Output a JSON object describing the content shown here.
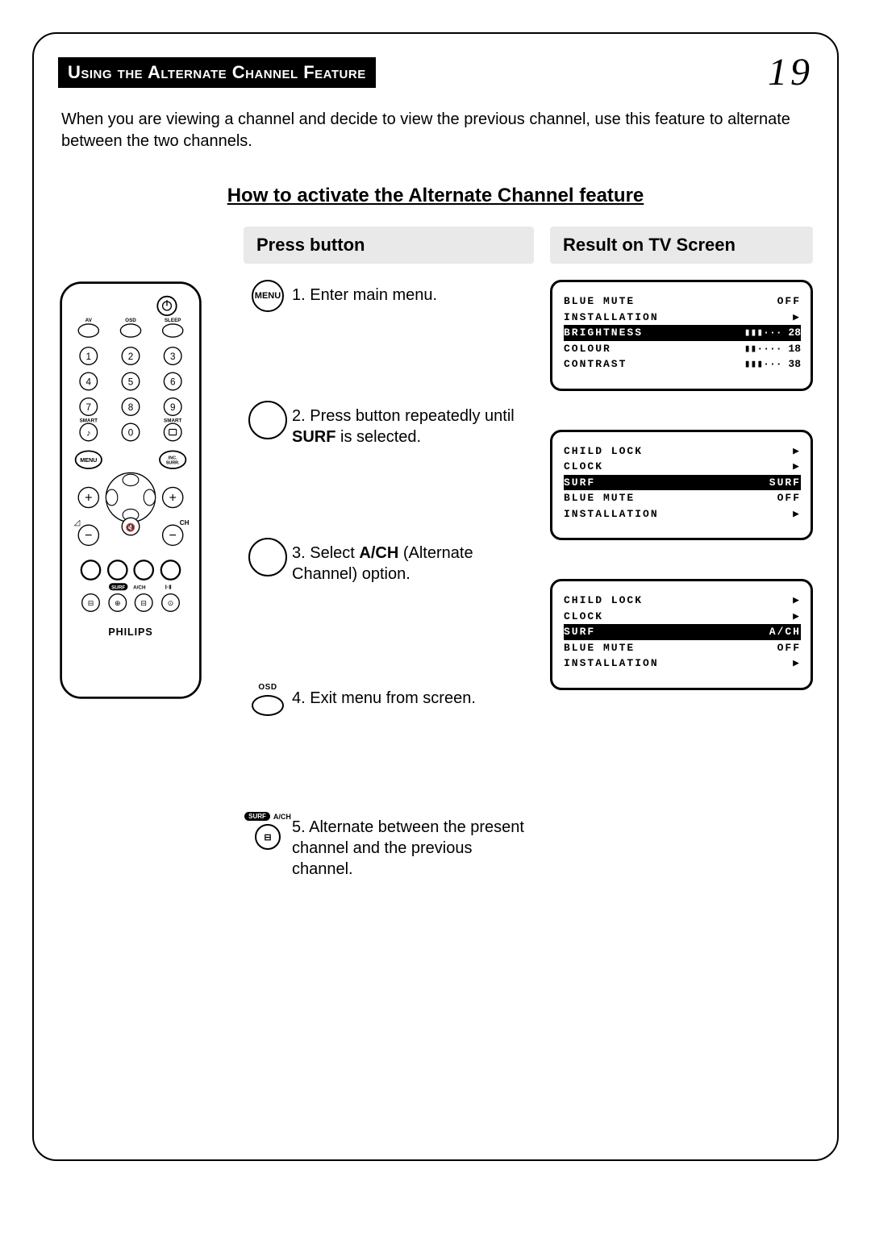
{
  "header": {
    "title": "Using the Alternate Channel Feature",
    "page_number": "19"
  },
  "intro": "When you are viewing a channel and decide to view the previous channel, use this feature to alternate between the two channels.",
  "howto_title": "How to activate the Alternate Channel feature",
  "col_headers": {
    "press": "Press button",
    "result": "Result on TV Screen"
  },
  "steps": [
    {
      "num": "1.",
      "text": "Enter main menu.",
      "icon_label": "MENU"
    },
    {
      "num": "2.",
      "text_pre": "Press button repeatedly until ",
      "bold": "SURF",
      "text_post": " is selected."
    },
    {
      "num": "3.",
      "text_pre": "Select ",
      "bold": "A/CH",
      "text_post": " (Alternate Channel) option."
    },
    {
      "num": "4.",
      "text": "Exit menu from screen.",
      "icon_label": "OSD"
    },
    {
      "num": "5.",
      "text": "Alternate between the present channel and the previous channel.",
      "icon_surf": "SURF",
      "icon_side": "A/CH"
    }
  ],
  "screens": [
    {
      "lines": [
        {
          "l": "BLUE MUTE",
          "r": "OFF"
        },
        {
          "l": "INSTALLATION",
          "r": "▶"
        },
        {
          "l": "BRIGHTNESS",
          "r": "28",
          "hl": true,
          "bar": 0.45
        },
        {
          "l": "COLOUR",
          "r": "18",
          "bar": 0.3
        },
        {
          "l": "CONTRAST",
          "r": "38",
          "bar": 0.55
        }
      ]
    },
    {
      "lines": [
        {
          "l": "CHILD LOCK",
          "r": "▶"
        },
        {
          "l": "CLOCK",
          "r": "▶"
        },
        {
          "l": "SURF",
          "r": "SURF",
          "hl": true
        },
        {
          "l": "BLUE MUTE",
          "r": "OFF"
        },
        {
          "l": "INSTALLATION",
          "r": "▶"
        }
      ]
    },
    {
      "lines": [
        {
          "l": "CHILD LOCK",
          "r": "▶"
        },
        {
          "l": "CLOCK",
          "r": "▶"
        },
        {
          "l": "SURF",
          "r": "A/CH",
          "hl": true
        },
        {
          "l": "BLUE MUTE",
          "r": "OFF"
        },
        {
          "l": "INSTALLATION",
          "r": "▶"
        }
      ]
    }
  ],
  "remote": {
    "brand": "PHILIPS",
    "top_labels": [
      "AV",
      "OSD",
      "SLEEP"
    ],
    "mid_labels_left": "SMART",
    "mid_labels_right": "SMART",
    "menu": "MENU",
    "inc_surr": "INC. SURR.",
    "ch": "CH",
    "surf_ach": "A/CH"
  }
}
